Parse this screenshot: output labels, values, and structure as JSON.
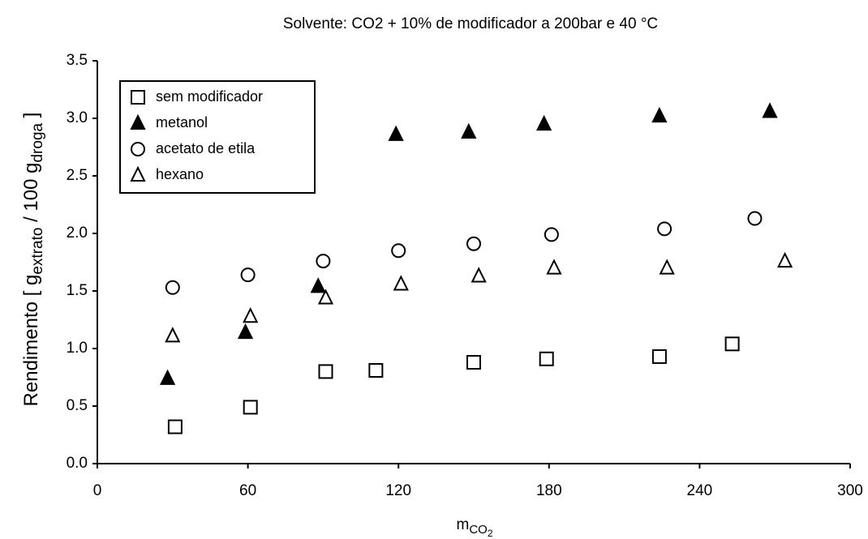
{
  "chart_data": {
    "type": "scatter",
    "title": "Solvente: CO2 + 10% de modificador a 200bar e 40 °C",
    "x_label": {
      "main": "m",
      "sub": "CO",
      "sub2": "2"
    },
    "y_label": {
      "a": "Rendimento [ g",
      "b": "extrato",
      "c": " / 100 g",
      "d": "droga",
      "e": " ]"
    },
    "xlim": [
      0,
      300
    ],
    "xticks": [
      0,
      60,
      120,
      180,
      240,
      300
    ],
    "ylim": [
      0,
      3.5
    ],
    "yticks": [
      {
        "value": 0,
        "label": "0.0"
      },
      0.5,
      {
        "value": 1,
        "label": "1.0"
      },
      1.5,
      {
        "value": 2,
        "label": "2.0"
      },
      2.5,
      {
        "value": 3,
        "label": "3.0"
      },
      3.5
    ],
    "legend": "upper left",
    "series": [
      {
        "name": "sem modificador",
        "marker": "square",
        "filled": false,
        "color": "#000000",
        "x": [
          31,
          61,
          91,
          111,
          150,
          179,
          224,
          253
        ],
        "values": [
          0.32,
          0.49,
          0.8,
          0.81,
          0.88,
          0.91,
          0.93,
          1.04
        ]
      },
      {
        "name": "metanol",
        "marker": "triangle",
        "filled": true,
        "color": "#000000",
        "x": [
          28,
          59,
          88,
          119,
          148,
          178,
          224,
          268
        ],
        "values": [
          0.74,
          1.14,
          1.54,
          2.86,
          2.88,
          2.95,
          3.02,
          3.06
        ]
      },
      {
        "name": "acetato de etila",
        "marker": "circle",
        "filled": false,
        "color": "#000000",
        "x": [
          30,
          60,
          90,
          120,
          150,
          181,
          226,
          262
        ],
        "values": [
          1.53,
          1.64,
          1.76,
          1.85,
          1.91,
          1.99,
          2.04,
          2.13
        ]
      },
      {
        "name": "hexano",
        "marker": "triangle",
        "filled": false,
        "color": "#000000",
        "x": [
          30,
          61,
          91,
          121,
          152,
          182,
          227,
          274
        ],
        "values": [
          1.11,
          1.28,
          1.44,
          1.56,
          1.63,
          1.7,
          1.7,
          1.76
        ]
      }
    ]
  }
}
